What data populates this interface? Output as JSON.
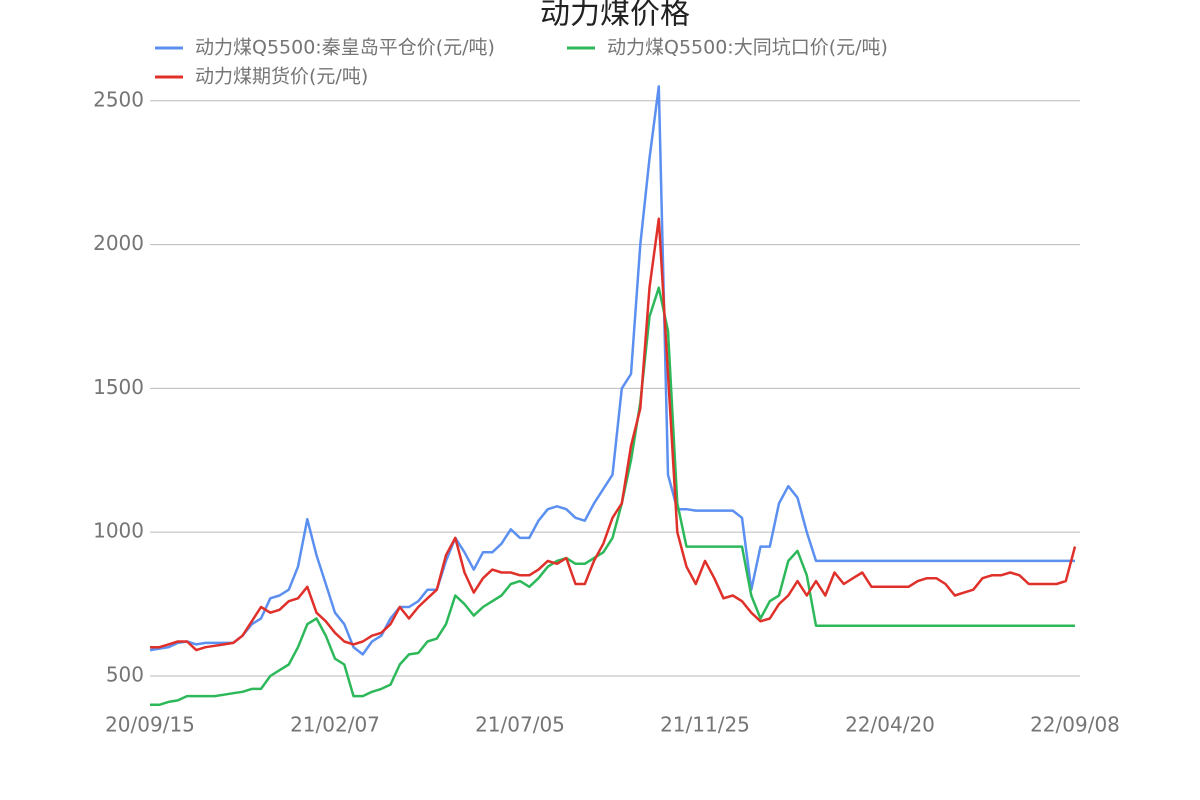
{
  "chart_data": {
    "type": "line",
    "title": "动力煤价格",
    "categories": [
      "20/09/15",
      null,
      null,
      null,
      null,
      null,
      null,
      null,
      null,
      null,
      null,
      null,
      null,
      null,
      null,
      null,
      null,
      null,
      null,
      null,
      "21/02/07",
      null,
      null,
      null,
      null,
      null,
      null,
      null,
      null,
      null,
      null,
      null,
      null,
      null,
      null,
      null,
      null,
      null,
      null,
      null,
      "21/07/05",
      null,
      null,
      null,
      null,
      null,
      null,
      null,
      null,
      null,
      null,
      null,
      null,
      null,
      null,
      null,
      null,
      null,
      null,
      null,
      "21/11/25",
      null,
      null,
      null,
      null,
      null,
      null,
      null,
      null,
      null,
      null,
      null,
      null,
      null,
      null,
      null,
      null,
      null,
      null,
      null,
      "22/04/20",
      null,
      null,
      null,
      null,
      null,
      null,
      null,
      null,
      null,
      null,
      null,
      null,
      null,
      null,
      null,
      null,
      null,
      null,
      null,
      "22/09/08"
    ],
    "series": [
      {
        "name": "动力煤Q5500:秦皇岛平仓价(元/吨)",
        "color": "#5b8ff0",
        "values": [
          590,
          595,
          600,
          615,
          620,
          610,
          615,
          615,
          615,
          615,
          640,
          680,
          700,
          770,
          780,
          800,
          880,
          1045,
          920,
          820,
          720,
          680,
          600,
          575,
          620,
          640,
          700,
          740,
          740,
          760,
          800,
          800,
          900,
          980,
          930,
          870,
          930,
          930,
          960,
          1010,
          980,
          980,
          1040,
          1080,
          1090,
          1080,
          1050,
          1040,
          1100,
          1150,
          1200,
          1500,
          1550,
          2000,
          2300,
          2550,
          1200,
          1080,
          1080,
          1075,
          1075,
          1075,
          1075,
          1075,
          1050,
          800,
          950,
          950,
          1100,
          1160,
          1120,
          1000,
          900,
          900,
          900,
          900,
          900,
          900,
          900,
          900,
          900,
          900,
          900,
          900,
          900,
          900,
          900,
          900,
          900,
          900,
          900,
          900,
          900,
          900,
          900,
          900,
          900,
          900,
          900,
          900,
          900
        ]
      },
      {
        "name": "动力煤Q5500:大同坑口价(元/吨)",
        "color": "#2db85a",
        "values": [
          400,
          400,
          410,
          415,
          430,
          430,
          430,
          430,
          435,
          440,
          445,
          455,
          455,
          500,
          520,
          540,
          600,
          680,
          700,
          640,
          560,
          540,
          430,
          430,
          445,
          455,
          470,
          540,
          575,
          580,
          620,
          630,
          680,
          780,
          750,
          710,
          740,
          760,
          780,
          820,
          830,
          810,
          840,
          880,
          900,
          910,
          890,
          890,
          910,
          930,
          980,
          1100,
          1250,
          1450,
          1750,
          1850,
          1700,
          1100,
          950,
          950,
          950,
          950,
          950,
          950,
          950,
          780,
          700,
          760,
          780,
          900,
          935,
          850,
          675,
          675,
          675,
          675,
          675,
          675,
          675,
          675,
          675,
          675,
          675,
          675,
          675,
          675,
          675,
          675,
          675,
          675,
          675,
          675,
          675,
          675,
          675,
          675,
          675,
          675,
          675,
          675,
          675
        ]
      },
      {
        "name": "动力煤期货价(元/吨)",
        "color": "#e0302a",
        "values": [
          600,
          600,
          610,
          620,
          620,
          590,
          600,
          605,
          610,
          615,
          640,
          690,
          740,
          720,
          730,
          760,
          770,
          810,
          720,
          690,
          650,
          620,
          610,
          620,
          640,
          650,
          680,
          740,
          700,
          740,
          770,
          800,
          920,
          980,
          860,
          790,
          840,
          870,
          860,
          860,
          850,
          850,
          870,
          900,
          890,
          910,
          820,
          820,
          900,
          960,
          1050,
          1100,
          1300,
          1430,
          1850,
          2090,
          1550,
          1000,
          880,
          820,
          900,
          840,
          770,
          780,
          760,
          720,
          690,
          700,
          750,
          780,
          830,
          780,
          830,
          780,
          860,
          820,
          840,
          860,
          810,
          810,
          810,
          810,
          810,
          830,
          840,
          840,
          820,
          780,
          790,
          800,
          840,
          850,
          850,
          860,
          850,
          820,
          820,
          820,
          820,
          830,
          950
        ]
      }
    ],
    "ylim": [
      420,
      2680
    ],
    "yticks": [
      500,
      1000,
      1500,
      2000,
      2500
    ],
    "grid": true
  }
}
